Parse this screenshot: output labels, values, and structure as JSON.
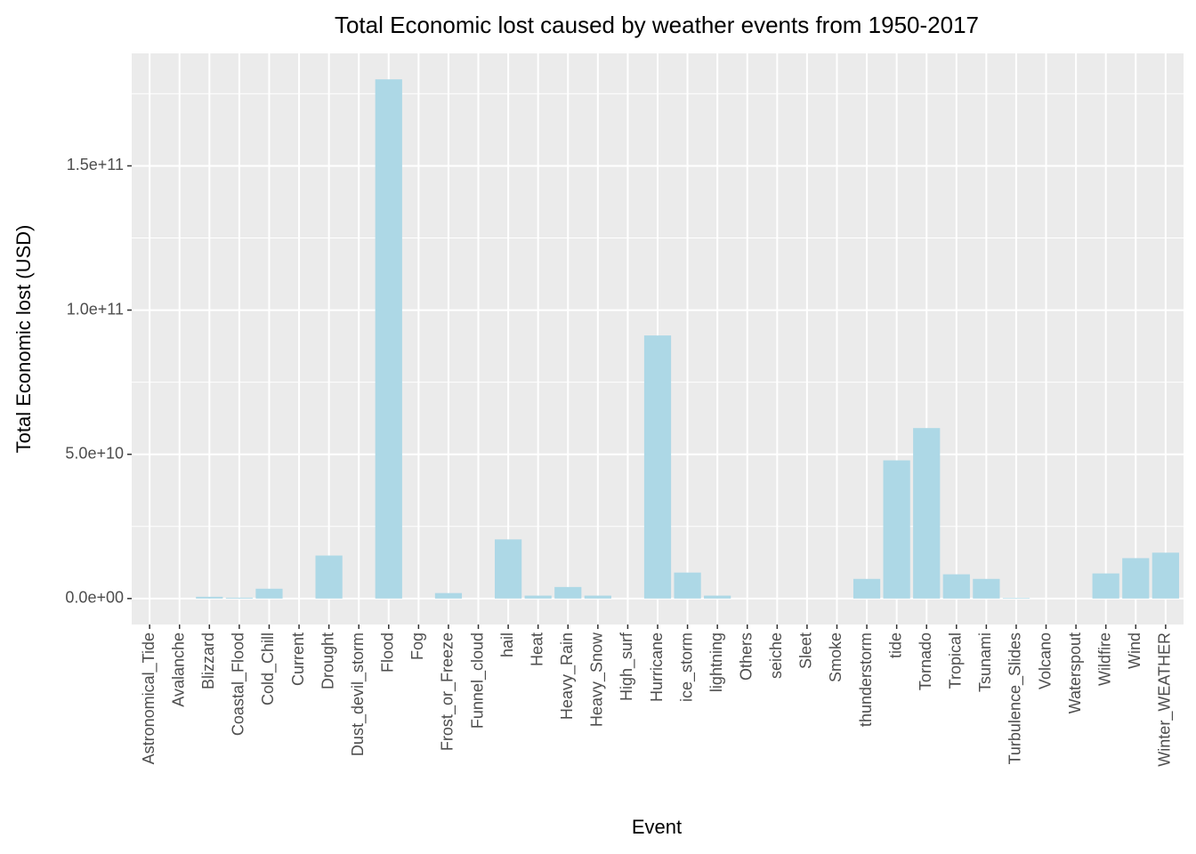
{
  "chart_data": {
    "type": "bar",
    "title": "Total Economic lost caused by weather events from 1950-2017",
    "x_label": "Event",
    "y_label": "Total Economic lost (USD)",
    "categories": [
      "Astronomical_Tide",
      "Avalanche",
      "Blizzard",
      "Coastal_Flood",
      "Cold_Chill",
      "Current",
      "Drought",
      "Dust_devil_storm",
      "Flood",
      "Fog",
      "Frost_or_Freeze",
      "Funnel_cloud",
      "hail",
      "Heat",
      "Heavy_Rain",
      "Heavy_Snow",
      "High_surf",
      "Hurricane",
      "ice_storm",
      "lightning",
      "Others",
      "seiche",
      "Sleet",
      "Smoke",
      "thunderstorm",
      "tide",
      "Tornado",
      "Tropical",
      "Tsunami",
      "Turbulence_Slides",
      "Volcano",
      "Waterspout",
      "Wildfire",
      "Wind",
      "Winter_WEATHER"
    ],
    "values": [
      0,
      0,
      600000000,
      300000000,
      3400000000,
      0,
      14900000000,
      0,
      180000000000,
      0,
      1900000000,
      0,
      20500000000,
      1000000000,
      4000000000,
      1000000000,
      0,
      91200000000,
      9000000000,
      1000000000,
      0,
      0,
      0,
      0,
      6800000000,
      47900000000,
      59100000000,
      8400000000,
      6800000000,
      200000000,
      0,
      0,
      8700000000,
      14000000000,
      15900000000
    ],
    "color": "#add8e6",
    "ylim": [
      -9000000000,
      189000000000
    ],
    "yticks": [
      {
        "value": 0,
        "label": "0.0e+00"
      },
      {
        "value": 50000000000,
        "label": "5.0e+10"
      },
      {
        "value": 100000000000,
        "label": "1.0e+11"
      },
      {
        "value": 150000000000,
        "label": "1.5e+11"
      }
    ],
    "y_minor_ticks": [
      25000000000,
      75000000000,
      125000000000,
      175000000000
    ],
    "grid": true
  }
}
